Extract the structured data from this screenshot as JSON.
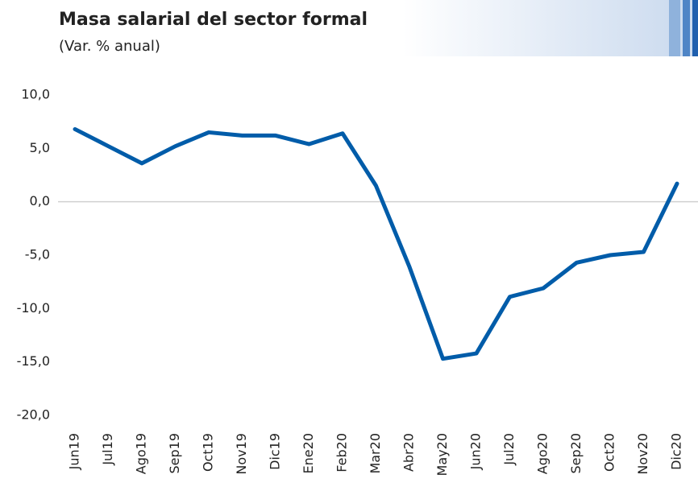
{
  "chart_data": {
    "type": "line",
    "title": "Masa salarial del sector formal",
    "subtitle": "(Var. % anual)",
    "categories": [
      "Jun19",
      "Jul19",
      "Ago19",
      "Sep19",
      "Oct19",
      "Nov19",
      "Dic19",
      "Ene20",
      "Feb20",
      "Mar20",
      "Abr20",
      "May20",
      "Jun20",
      "Jul20",
      "Ago20",
      "Sep20",
      "Oct20",
      "Nov20",
      "Dic20"
    ],
    "series": [
      {
        "color": "#005ca9",
        "values": [
          6.8,
          5.2,
          3.6,
          5.2,
          6.5,
          6.2,
          6.2,
          5.4,
          6.4,
          1.5,
          -6.1,
          -14.7,
          -14.2,
          -8.9,
          -8.1,
          -5.7,
          -5.0,
          -4.7,
          1.7
        ]
      }
    ],
    "ylim": [
      -20,
      10
    ],
    "yticks": [
      {
        "value": -20,
        "label": "-20,0"
      },
      {
        "value": -15,
        "label": "-15,0"
      },
      {
        "value": -10,
        "label": "-10,0"
      },
      {
        "value": -5,
        "label": "-5,0"
      },
      {
        "value": 0,
        "label": "0,0"
      },
      {
        "value": 5,
        "label": "5,0"
      },
      {
        "value": 10,
        "label": "10,0"
      }
    ],
    "grid": false,
    "zero_line": true
  }
}
